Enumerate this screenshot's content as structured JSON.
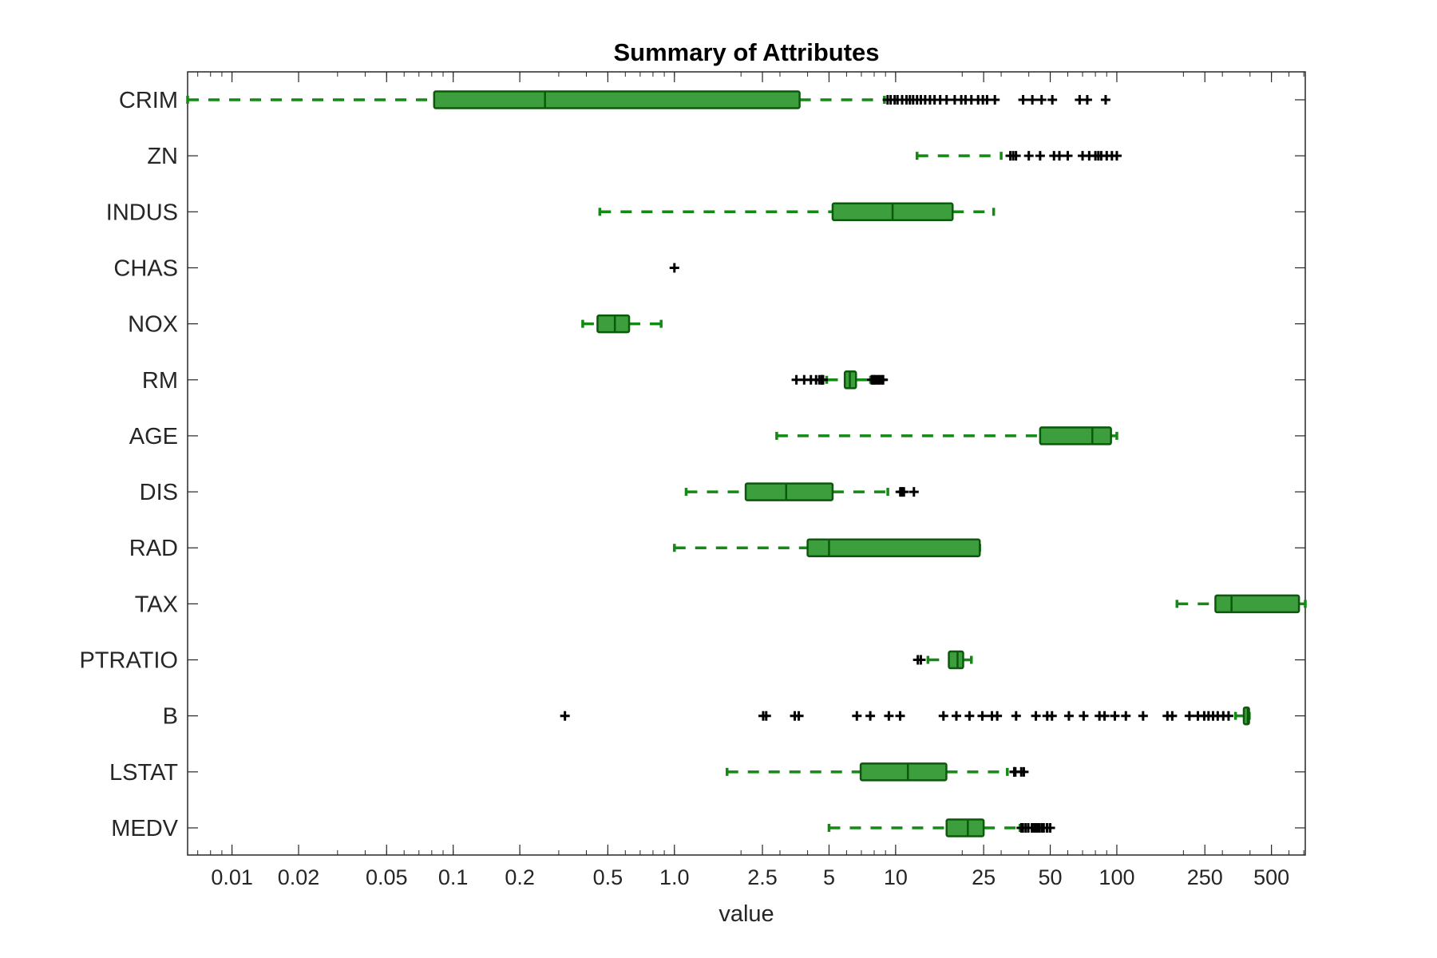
{
  "chart_data": {
    "type": "boxplot",
    "orientation": "horizontal",
    "title": "Summary of Attributes",
    "xlabel": "value",
    "xscale": "log",
    "xlim": [
      0.0063,
      711
    ],
    "xticks": [
      0.01,
      0.02,
      0.05,
      0.1,
      0.2,
      0.5,
      1.0,
      2.5,
      5,
      10,
      25,
      50,
      100,
      250,
      500
    ],
    "xtick_labels": [
      "0.01",
      "0.02",
      "0.05",
      "0.1",
      "0.2",
      "0.5",
      "1.0",
      "2.5",
      "5",
      "10",
      "25",
      "50",
      "100",
      "250",
      "500"
    ],
    "grid": false,
    "colors": {
      "box_fill": "#3c9e3c",
      "box_edge": "#0b5a0b",
      "whisker": "#138a13",
      "outlier": "#000000",
      "axis": "#262626"
    },
    "categories": [
      "CRIM",
      "ZN",
      "INDUS",
      "CHAS",
      "NOX",
      "RM",
      "AGE",
      "DIS",
      "RAD",
      "TAX",
      "PTRATIO",
      "B",
      "LSTAT",
      "MEDV"
    ],
    "series": [
      {
        "label": "CRIM",
        "min": 0.0063,
        "q1": 0.082,
        "median": 0.26,
        "q3": 3.68,
        "max": 8.9,
        "outliers": [
          9.2,
          9.5,
          9.9,
          10.2,
          10.7,
          11.2,
          11.6,
          12.0,
          12.5,
          13.0,
          13.6,
          14.3,
          15.0,
          15.9,
          17.0,
          18.5,
          19.8,
          20.7,
          22.0,
          23.6,
          24.8,
          25.9,
          28.1,
          37.7,
          41.5,
          45.7,
          51.1,
          67.9,
          73.5,
          89.0
        ]
      },
      {
        "label": "ZN",
        "min": 12.5,
        "q1": null,
        "median": null,
        "q3": null,
        "max": 30,
        "outliers": [
          33,
          34,
          35,
          40,
          45,
          52,
          55,
          60,
          70,
          75,
          80,
          82.5,
          85,
          90,
          95,
          100
        ]
      },
      {
        "label": "INDUS",
        "min": 0.46,
        "q1": 5.19,
        "median": 9.69,
        "q3": 18.1,
        "max": 27.74,
        "outliers": []
      },
      {
        "label": "CHAS",
        "min": null,
        "q1": null,
        "median": null,
        "q3": null,
        "max": null,
        "outliers": [
          1.0
        ]
      },
      {
        "label": "NOX",
        "min": 0.385,
        "q1": 0.449,
        "median": 0.538,
        "q3": 0.624,
        "max": 0.871,
        "outliers": []
      },
      {
        "label": "RM",
        "min": 4.88,
        "q1": 5.89,
        "median": 6.21,
        "q3": 6.62,
        "max": 7.7,
        "outliers": [
          3.56,
          3.86,
          4.14,
          4.37,
          4.52,
          4.63,
          4.65,
          4.7,
          7.8,
          7.9,
          8.0,
          8.1,
          8.25,
          8.4,
          8.5,
          8.7,
          8.78
        ]
      },
      {
        "label": "AGE",
        "min": 2.9,
        "q1": 45.0,
        "median": 77.5,
        "q3": 94.1,
        "max": 100,
        "outliers": []
      },
      {
        "label": "DIS",
        "min": 1.13,
        "q1": 2.1,
        "median": 3.2,
        "q3": 5.19,
        "max": 9.22,
        "outliers": [
          10.5,
          10.7,
          10.9,
          12.1
        ]
      },
      {
        "label": "RAD",
        "min": 1,
        "q1": 4,
        "median": 5,
        "q3": 24,
        "max": 24,
        "outliers": []
      },
      {
        "label": "TAX",
        "min": 187,
        "q1": 279,
        "median": 330,
        "q3": 666,
        "max": 711,
        "outliers": []
      },
      {
        "label": "PTRATIO",
        "min": 14.0,
        "q1": 17.4,
        "median": 19.05,
        "q3": 20.2,
        "max": 22.0,
        "outliers": [
          12.6,
          13.0
        ]
      },
      {
        "label": "B",
        "min": 344,
        "q1": 375,
        "median": 391,
        "q3": 396,
        "max": 397,
        "outliers": [
          0.32,
          2.52,
          2.6,
          3.5,
          3.65,
          6.68,
          7.68,
          9.32,
          10.48,
          16.45,
          18.82,
          21.57,
          24.65,
          27.25,
          28.79,
          35.05,
          43.06,
          48.45,
          50.92,
          60.72,
          70.8,
          83.45,
          88.01,
          97.95,
          109.85,
          131.42,
          169.27,
          178.03,
          212.87,
          232.6,
          248.31,
          259.72,
          272.21,
          285.83,
          302.76,
          319.98
        ]
      },
      {
        "label": "LSTAT",
        "min": 1.73,
        "q1": 6.95,
        "median": 11.36,
        "q3": 16.96,
        "max": 31.99,
        "outliers": [
          34.37,
          34.41,
          34.77,
          36.98,
          37.97
        ]
      },
      {
        "label": "MEDV",
        "min": 5.0,
        "q1": 17.0,
        "median": 21.2,
        "q3": 25.0,
        "max": 36.5,
        "outliers": [
          37.0,
          37.6,
          38.7,
          39.8,
          41.3,
          42.3,
          42.8,
          43.1,
          43.8,
          44.8,
          46.0,
          46.7,
          48.3,
          48.5,
          50.0
        ]
      }
    ]
  }
}
